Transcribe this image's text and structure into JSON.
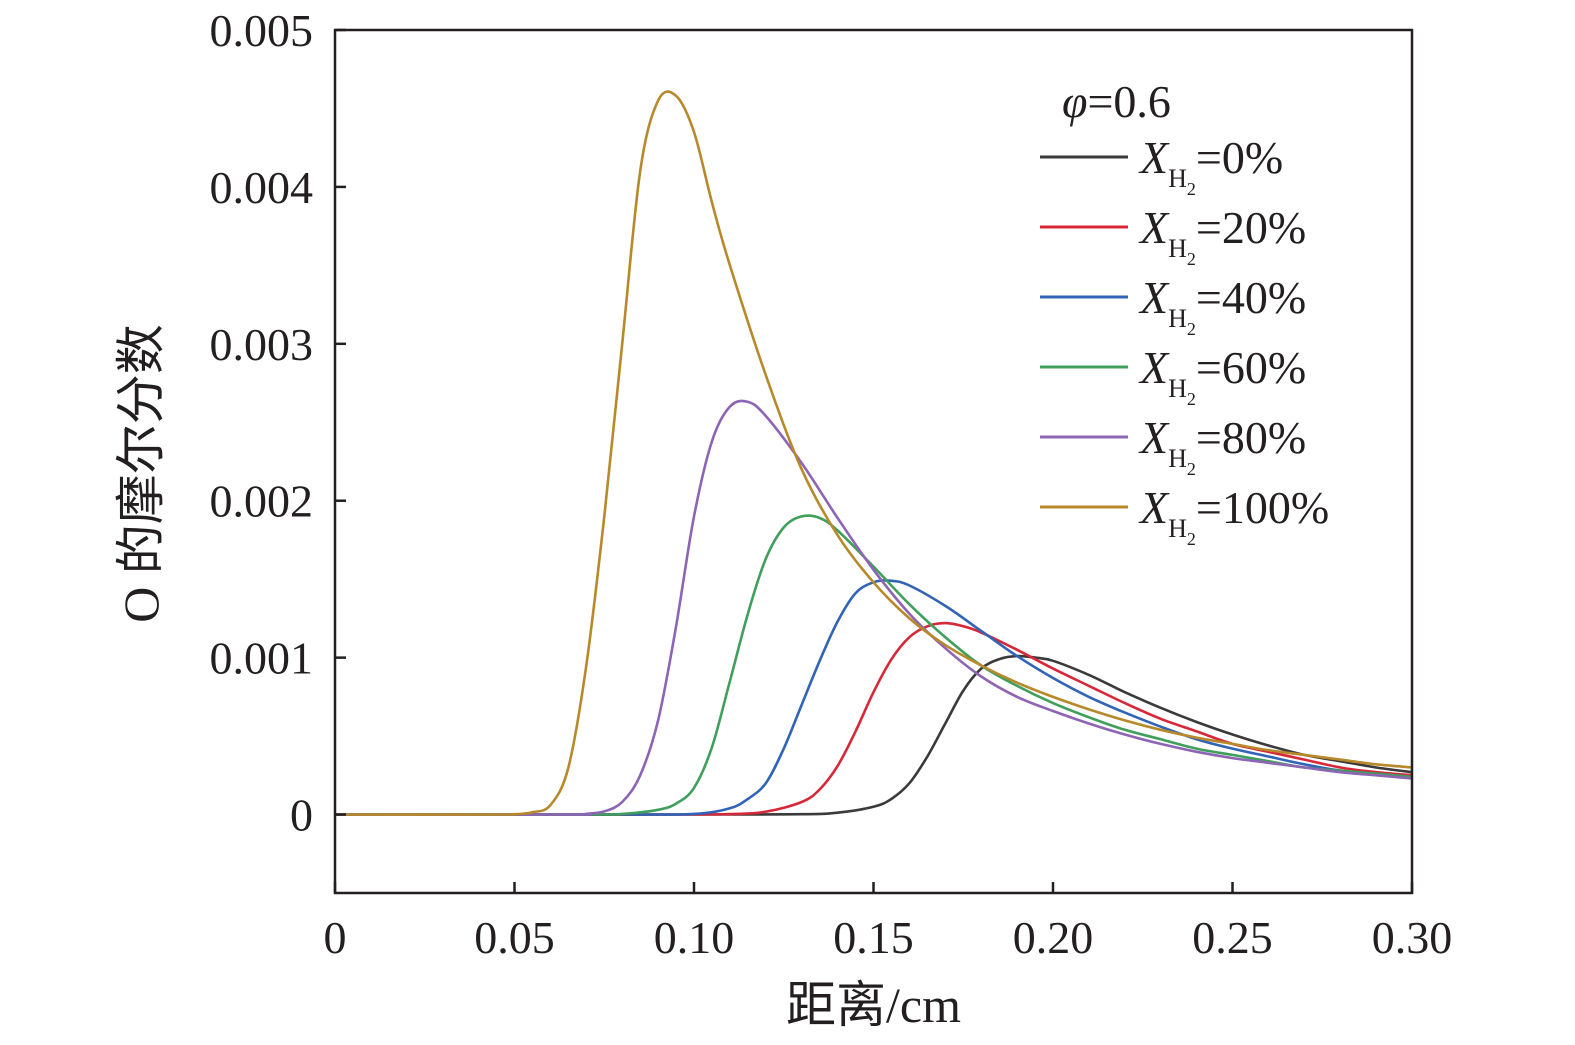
{
  "chart_data": {
    "type": "line",
    "xlabel": "距离/cm",
    "ylabel": "O 的摩尔分数",
    "xlim": [
      0,
      0.3
    ],
    "ylim": [
      -0.0005,
      0.005
    ],
    "xticks": [
      {
        "value": 0,
        "label": "0"
      },
      {
        "value": 0.05,
        "label": "0.05"
      },
      {
        "value": 0.1,
        "label": "0.10"
      },
      {
        "value": 0.15,
        "label": "0.15"
      },
      {
        "value": 0.2,
        "label": "0.20"
      },
      {
        "value": 0.25,
        "label": "0.25"
      },
      {
        "value": 0.3,
        "label": "0.30"
      }
    ],
    "yticks": [
      {
        "value": 0,
        "label": "0"
      },
      {
        "value": 0.001,
        "label": "0.001"
      },
      {
        "value": 0.002,
        "label": "0.002"
      },
      {
        "value": 0.003,
        "label": "0.003"
      },
      {
        "value": 0.004,
        "label": "0.004"
      },
      {
        "value": 0.005,
        "label": "0.005"
      }
    ],
    "grid": false,
    "legend_placement": "top-right",
    "legend_title": {
      "symbol": "φ",
      "text": "=0.6"
    },
    "series": [
      {
        "name": "X_H2=0%",
        "legend_var": "X",
        "legend_sub": "H",
        "legend_subsub": "2",
        "legend_value": "=0%",
        "color": "#3a3a3a",
        "x": [
          0,
          0.1,
          0.13,
          0.14,
          0.15,
          0.155,
          0.16,
          0.165,
          0.17,
          0.175,
          0.18,
          0.185,
          0.19,
          0.195,
          0.2,
          0.21,
          0.22,
          0.23,
          0.24,
          0.25,
          0.26,
          0.27,
          0.28,
          0.29,
          0.3
        ],
        "y": [
          0,
          0,
          2e-06,
          1.2e-05,
          5e-05,
          0.0001,
          0.0002,
          0.00037,
          0.00058,
          0.00079,
          0.00093,
          0.00099,
          0.00101,
          0.001,
          0.00098,
          0.00089,
          0.00078,
          0.00068,
          0.00059,
          0.00051,
          0.00044,
          0.00038,
          0.00034,
          0.0003,
          0.00027
        ]
      },
      {
        "name": "X_H2=20%",
        "legend_var": "X",
        "legend_sub": "H",
        "legend_subsub": "2",
        "legend_value": "=20%",
        "color": "#d7283a",
        "x": [
          0,
          0.09,
          0.11,
          0.12,
          0.13,
          0.135,
          0.14,
          0.145,
          0.15,
          0.155,
          0.16,
          0.165,
          0.17,
          0.175,
          0.18,
          0.19,
          0.2,
          0.21,
          0.22,
          0.23,
          0.24,
          0.25,
          0.26,
          0.27,
          0.28,
          0.29,
          0.3
        ],
        "y": [
          0,
          0,
          3e-06,
          1.8e-05,
          8e-05,
          0.00016,
          0.00031,
          0.00053,
          0.00078,
          0.00099,
          0.00113,
          0.0012,
          0.00122,
          0.0012,
          0.00116,
          0.00105,
          0.00093,
          0.00082,
          0.00071,
          0.00061,
          0.00053,
          0.00045,
          0.0004,
          0.00035,
          0.0003,
          0.00027,
          0.00025
        ]
      },
      {
        "name": "X_H2=40%",
        "legend_var": "X",
        "legend_sub": "H",
        "legend_subsub": "2",
        "legend_value": "=40%",
        "color": "#3164b6",
        "x": [
          0,
          0.08,
          0.1,
          0.11,
          0.115,
          0.12,
          0.125,
          0.13,
          0.135,
          0.14,
          0.145,
          0.15,
          0.155,
          0.16,
          0.17,
          0.18,
          0.19,
          0.2,
          0.21,
          0.22,
          0.23,
          0.24,
          0.25,
          0.26,
          0.27,
          0.28,
          0.29,
          0.3
        ],
        "y": [
          0,
          0,
          4e-06,
          4e-05,
          0.0001,
          0.0002,
          0.00042,
          0.0007,
          0.00098,
          0.00123,
          0.00141,
          0.00148,
          0.00149,
          0.00146,
          0.00133,
          0.00117,
          0.00101,
          0.00087,
          0.00075,
          0.00065,
          0.00056,
          0.00048,
          0.00042,
          0.00037,
          0.00032,
          0.00028,
          0.00026,
          0.00024
        ]
      },
      {
        "name": "X_H2=60%",
        "legend_var": "X",
        "legend_sub": "H",
        "legend_subsub": "2",
        "legend_value": "=60%",
        "color": "#3f9f5b",
        "x": [
          0,
          0.07,
          0.08,
          0.09,
          0.095,
          0.1,
          0.105,
          0.11,
          0.115,
          0.12,
          0.125,
          0.13,
          0.135,
          0.14,
          0.15,
          0.16,
          0.17,
          0.18,
          0.19,
          0.2,
          0.21,
          0.22,
          0.23,
          0.24,
          0.25,
          0.26,
          0.27,
          0.28,
          0.29,
          0.3
        ],
        "y": [
          0,
          0,
          4e-06,
          3e-05,
          7e-05,
          0.00017,
          0.00043,
          0.00085,
          0.00128,
          0.00163,
          0.00183,
          0.0019,
          0.00189,
          0.00181,
          0.00158,
          0.00134,
          0.00113,
          0.00095,
          0.00082,
          0.00071,
          0.00062,
          0.00054,
          0.00048,
          0.00042,
          0.00038,
          0.00034,
          0.0003,
          0.00028,
          0.00026,
          0.00024
        ]
      },
      {
        "name": "X_H2=80%",
        "legend_var": "X",
        "legend_sub": "H",
        "legend_subsub": "2",
        "legend_value": "=80%",
        "color": "#8e64b5",
        "x": [
          0,
          0.065,
          0.07,
          0.075,
          0.08,
          0.085,
          0.09,
          0.095,
          0.1,
          0.105,
          0.11,
          0.115,
          0.12,
          0.13,
          0.14,
          0.15,
          0.16,
          0.17,
          0.18,
          0.19,
          0.2,
          0.21,
          0.22,
          0.23,
          0.24,
          0.25,
          0.26,
          0.27,
          0.28,
          0.29,
          0.3
        ],
        "y": [
          0,
          0,
          5e-06,
          2e-05,
          8e-05,
          0.00025,
          0.0006,
          0.0012,
          0.0019,
          0.00238,
          0.0026,
          0.00263,
          0.00254,
          0.00224,
          0.00189,
          0.00156,
          0.00128,
          0.00106,
          0.00088,
          0.00075,
          0.00066,
          0.00058,
          0.00051,
          0.00045,
          0.0004,
          0.00036,
          0.00033,
          0.0003,
          0.00027,
          0.00025,
          0.00023
        ]
      },
      {
        "name": "X_H2=100%",
        "legend_var": "X",
        "legend_sub": "H",
        "legend_subsub": "2",
        "legend_value": "=100%",
        "color": "#b8892a",
        "x": [
          0,
          0.045,
          0.05,
          0.055,
          0.06,
          0.065,
          0.07,
          0.075,
          0.08,
          0.085,
          0.09,
          0.095,
          0.1,
          0.105,
          0.11,
          0.12,
          0.13,
          0.14,
          0.15,
          0.16,
          0.17,
          0.18,
          0.19,
          0.2,
          0.21,
          0.22,
          0.23,
          0.24,
          0.25,
          0.26,
          0.27,
          0.28,
          0.29,
          0.3
        ],
        "y": [
          0,
          0,
          2e-06,
          1.5e-05,
          6e-05,
          0.0003,
          0.00095,
          0.0019,
          0.003,
          0.0041,
          0.00455,
          0.00458,
          0.00435,
          0.0039,
          0.0035,
          0.0028,
          0.0022,
          0.00178,
          0.00148,
          0.00125,
          0.00108,
          0.00095,
          0.00084,
          0.00075,
          0.00067,
          0.0006,
          0.00054,
          0.00049,
          0.00045,
          0.00041,
          0.00038,
          0.00035,
          0.00032,
          0.0003
        ]
      }
    ]
  }
}
